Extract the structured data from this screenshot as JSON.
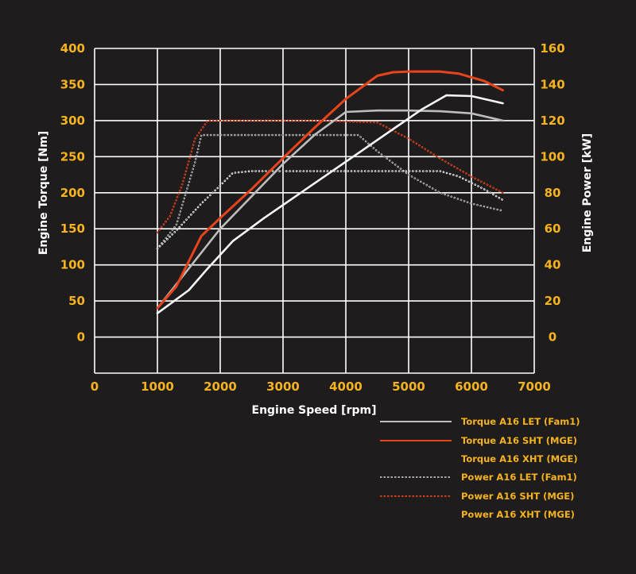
{
  "colors": {
    "background": "#1e1c1d",
    "grid": "#ffffff",
    "tick_text": "#f6b31f",
    "axis_title": "#ffffff",
    "let": "#bdbdbd",
    "sht": "#e8441c",
    "sht_glow": "#ff8a5b",
    "xht": "#f4f4f4"
  },
  "chart_data": {
    "type": "line",
    "title": "",
    "xlabel": "Engine Speed [rpm]",
    "ylabel_left": "Engine Torque [Nm]",
    "ylabel_right": "Engine Power [kW]",
    "xlim": [
      0,
      7000
    ],
    "ylim_left": [
      -50,
      400
    ],
    "ylim_right": [
      -20,
      160
    ],
    "x_ticks": [
      "0",
      "1000",
      "2000",
      "3000",
      "4000",
      "5000",
      "6000",
      "7000"
    ],
    "y_ticks_left": [
      "0",
      "50",
      "100",
      "150",
      "200",
      "250",
      "300",
      "350",
      "400"
    ],
    "y_ticks_right": [
      "0",
      "20",
      "40",
      "60",
      "80",
      "100",
      "120",
      "140",
      "160"
    ],
    "grid": true,
    "legend_position": "bottom-right",
    "series": [
      {
        "name": "Torque A16 LET (Fam1)",
        "axis": "left",
        "style": "solid",
        "color": "#bdbdbd",
        "x": [
          1000,
          1500,
          2000,
          2500,
          3000,
          3500,
          4000,
          4500,
          5000,
          5500,
          6000,
          6500
        ],
        "y": [
          40,
          95,
          150,
          195,
          240,
          280,
          312,
          314,
          314,
          313,
          310,
          300
        ]
      },
      {
        "name": "Torque A16 SHT (MGE)",
        "axis": "left",
        "style": "solid",
        "color": "#e8441c",
        "x": [
          1000,
          1300,
          1700,
          2000,
          2500,
          3000,
          3500,
          4000,
          4500,
          4750,
          5000,
          5500,
          5800,
          6200,
          6500
        ],
        "y": [
          40,
          70,
          140,
          165,
          205,
          248,
          290,
          330,
          362,
          367,
          368,
          368,
          365,
          355,
          342
        ]
      },
      {
        "name": "Torque A16 XHT (MGE)",
        "axis": "left",
        "style": "solid",
        "color": "#f4f4f4",
        "x": [
          1000,
          1500,
          1800,
          2200,
          2700,
          3200,
          3700,
          4200,
          4700,
          5200,
          5600,
          6000,
          6500
        ],
        "y": [
          33,
          65,
          95,
          133,
          165,
          195,
          225,
          255,
          285,
          315,
          335,
          334,
          324
        ]
      },
      {
        "name": "Power A16 LET (Fam1)",
        "axis": "right",
        "style": "dotted",
        "color": "#bdbdbd",
        "x": [
          1000,
          1300,
          1600,
          1700,
          2000,
          3000,
          4000,
          4200,
          4500,
          5000,
          5500,
          6000,
          6500
        ],
        "y": [
          49,
          62,
          97,
          112,
          112,
          112,
          112,
          112,
          103,
          90,
          80,
          74,
          70
        ]
      },
      {
        "name": "Power A16 SHT (MGE)",
        "axis": "right",
        "style": "dotted",
        "color": "#e8441c",
        "x": [
          1000,
          1200,
          1400,
          1600,
          1800,
          2500,
          3500,
          4500,
          5000,
          5500,
          6000,
          6500
        ],
        "y": [
          58,
          67,
          85,
          110,
          120,
          120,
          120,
          119,
          110,
          99,
          89,
          80
        ]
      },
      {
        "name": "Power A16 XHT (MGE)",
        "axis": "right",
        "style": "dotted",
        "color": "#f4f4f4",
        "x": [
          1000,
          1300,
          1700,
          2000,
          2200,
          2500,
          3000,
          4000,
          5000,
          5500,
          5800,
          6200,
          6500
        ],
        "y": [
          49,
          59,
          74,
          84,
          91,
          92,
          92,
          92,
          92,
          92,
          89,
          82,
          76
        ]
      }
    ]
  }
}
